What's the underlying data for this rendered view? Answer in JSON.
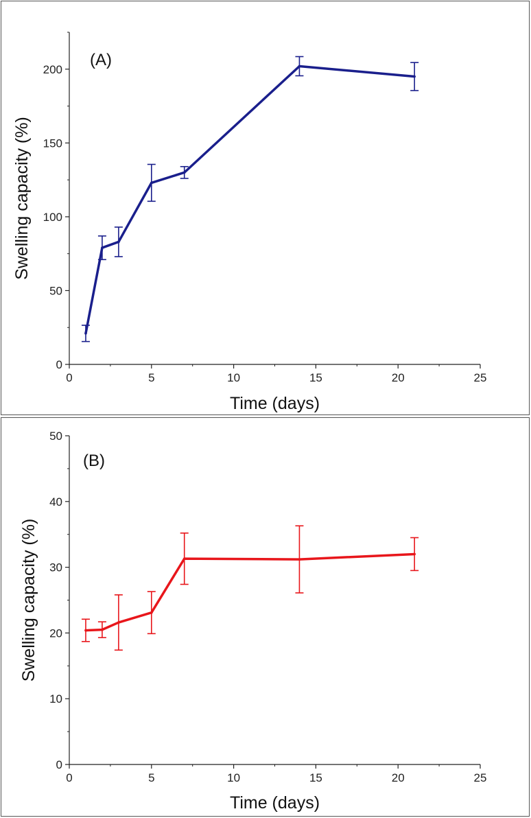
{
  "figure": {
    "description_panels": [
      "A",
      "B"
    ]
  },
  "chart_data": [
    {
      "type": "line",
      "panel_label": "(A)",
      "title": "",
      "xlabel": "Time (days)",
      "ylabel": "Swelling capacity (%)",
      "xlim": [
        0,
        25
      ],
      "ylim": [
        0,
        225
      ],
      "xticks": [
        0,
        5,
        10,
        15,
        20,
        25
      ],
      "yticks": [
        0,
        50,
        100,
        150,
        200
      ],
      "x_minor_step": 2.5,
      "y_minor_step": 25,
      "grid": false,
      "series": [
        {
          "name": "Swelling capacity (A)",
          "color": "#1a1f8c",
          "x": [
            1,
            2,
            3,
            5,
            7,
            14,
            21
          ],
          "y": [
            21,
            79,
            83,
            123,
            130,
            202,
            195
          ],
          "error": [
            5.5,
            8,
            10,
            12.5,
            4,
            6.5,
            9.5
          ]
        }
      ]
    },
    {
      "type": "line",
      "panel_label": "(B)",
      "title": "",
      "xlabel": "Time (days)",
      "ylabel": "Swelling capacity (%)",
      "xlim": [
        0,
        25
      ],
      "ylim": [
        0,
        50
      ],
      "xticks": [
        0,
        5,
        10,
        15,
        20,
        25
      ],
      "yticks": [
        0,
        10,
        20,
        30,
        40,
        50
      ],
      "x_minor_step": 2.5,
      "y_minor_step": 5,
      "grid": false,
      "series": [
        {
          "name": "Swelling capacity (B)",
          "color": "#e8161b",
          "x": [
            1,
            2,
            3,
            5,
            7,
            14,
            21
          ],
          "y": [
            20.4,
            20.5,
            21.6,
            23.1,
            31.3,
            31.2,
            32
          ],
          "error": [
            1.7,
            1.2,
            4.2,
            3.2,
            3.9,
            5.1,
            2.5
          ]
        }
      ]
    }
  ]
}
